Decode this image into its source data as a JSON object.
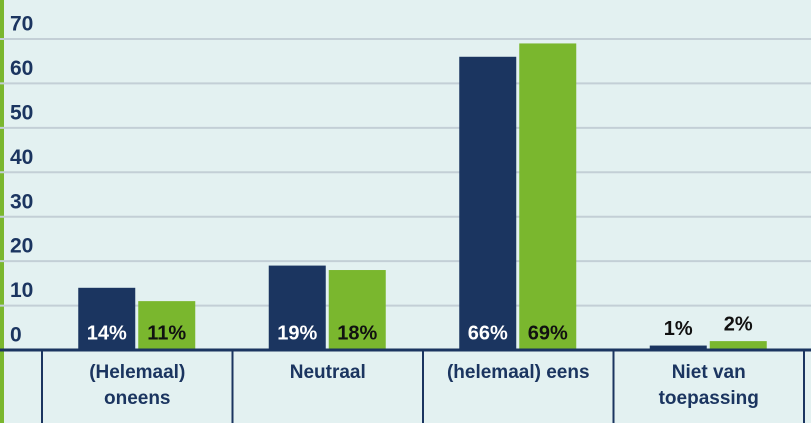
{
  "chart_data": {
    "type": "bar",
    "categories": [
      "(Helemaal) oneens",
      "Neutraal",
      "(helemaal) eens",
      "Niet van toepassing"
    ],
    "series": [
      {
        "color": "#1b3560",
        "values": [
          14,
          19,
          66,
          1
        ],
        "value_labels": [
          "14%",
          "19%",
          "66%",
          "1%"
        ]
      },
      {
        "color": "#7ab72e",
        "values": [
          11,
          18,
          69,
          2
        ],
        "value_labels": [
          "11%",
          "18%",
          "69%",
          "2%"
        ]
      }
    ],
    "ylim": [
      0,
      70
    ],
    "yticks": [
      0,
      10,
      20,
      30,
      40,
      50,
      60,
      70
    ],
    "grid": true
  }
}
